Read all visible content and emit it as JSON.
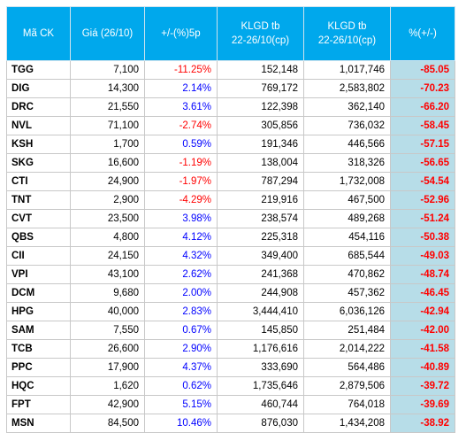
{
  "headers": {
    "code": "Mã CK",
    "price": "Giá (26/10)",
    "change": "+/-(%)5p",
    "vol1": "KLGD tb\n22-26/10(cp)",
    "vol2": "KLGD tb\n22-26/10(cp)",
    "pct": "%(+/-)"
  },
  "colors": {
    "header_bg": "#00a8ec",
    "pct_bg": "#b7dde8",
    "positive": "#0000ff",
    "negative": "#ff0000"
  },
  "rows": [
    {
      "code": "TGG",
      "price": "7,100",
      "change": "-11.25%",
      "vol1": "152,148",
      "vol2": "1,017,746",
      "pct": "-85.05"
    },
    {
      "code": "DIG",
      "price": "14,300",
      "change": "2.14%",
      "vol1": "769,172",
      "vol2": "2,583,802",
      "pct": "-70.23"
    },
    {
      "code": "DRC",
      "price": "21,550",
      "change": "3.61%",
      "vol1": "122,398",
      "vol2": "362,140",
      "pct": "-66.20"
    },
    {
      "code": "NVL",
      "price": "71,100",
      "change": "-2.74%",
      "vol1": "305,856",
      "vol2": "736,032",
      "pct": "-58.45"
    },
    {
      "code": "KSH",
      "price": "1,700",
      "change": "0.59%",
      "vol1": "191,346",
      "vol2": "446,566",
      "pct": "-57.15"
    },
    {
      "code": "SKG",
      "price": "16,600",
      "change": "-1.19%",
      "vol1": "138,004",
      "vol2": "318,326",
      "pct": "-56.65"
    },
    {
      "code": "CTI",
      "price": "24,900",
      "change": "-1.97%",
      "vol1": "787,294",
      "vol2": "1,732,008",
      "pct": "-54.54"
    },
    {
      "code": "TNT",
      "price": "2,900",
      "change": "-4.29%",
      "vol1": "219,916",
      "vol2": "467,500",
      "pct": "-52.96"
    },
    {
      "code": "CVT",
      "price": "23,500",
      "change": "3.98%",
      "vol1": "238,574",
      "vol2": "489,268",
      "pct": "-51.24"
    },
    {
      "code": "QBS",
      "price": "4,800",
      "change": "4.12%",
      "vol1": "225,318",
      "vol2": "454,116",
      "pct": "-50.38"
    },
    {
      "code": "CII",
      "price": "24,150",
      "change": "4.32%",
      "vol1": "349,400",
      "vol2": "685,544",
      "pct": "-49.03"
    },
    {
      "code": "VPI",
      "price": "43,100",
      "change": "2.62%",
      "vol1": "241,368",
      "vol2": "470,862",
      "pct": "-48.74"
    },
    {
      "code": "DCM",
      "price": "9,680",
      "change": "2.00%",
      "vol1": "244,908",
      "vol2": "457,362",
      "pct": "-46.45"
    },
    {
      "code": "HPG",
      "price": "40,000",
      "change": "2.83%",
      "vol1": "3,444,410",
      "vol2": "6,036,126",
      "pct": "-42.94"
    },
    {
      "code": "SAM",
      "price": "7,550",
      "change": "0.67%",
      "vol1": "145,850",
      "vol2": "251,484",
      "pct": "-42.00"
    },
    {
      "code": "TCB",
      "price": "26,600",
      "change": "2.90%",
      "vol1": "1,176,616",
      "vol2": "2,014,222",
      "pct": "-41.58"
    },
    {
      "code": "PPC",
      "price": "17,900",
      "change": "4.37%",
      "vol1": "333,690",
      "vol2": "564,486",
      "pct": "-40.89"
    },
    {
      "code": "HQC",
      "price": "1,620",
      "change": "0.62%",
      "vol1": "1,735,646",
      "vol2": "2,879,506",
      "pct": "-39.72"
    },
    {
      "code": "FPT",
      "price": "42,900",
      "change": "5.15%",
      "vol1": "460,744",
      "vol2": "764,018",
      "pct": "-39.69"
    },
    {
      "code": "MSN",
      "price": "84,500",
      "change": "10.46%",
      "vol1": "876,030",
      "vol2": "1,434,208",
      "pct": "-38.92"
    }
  ]
}
